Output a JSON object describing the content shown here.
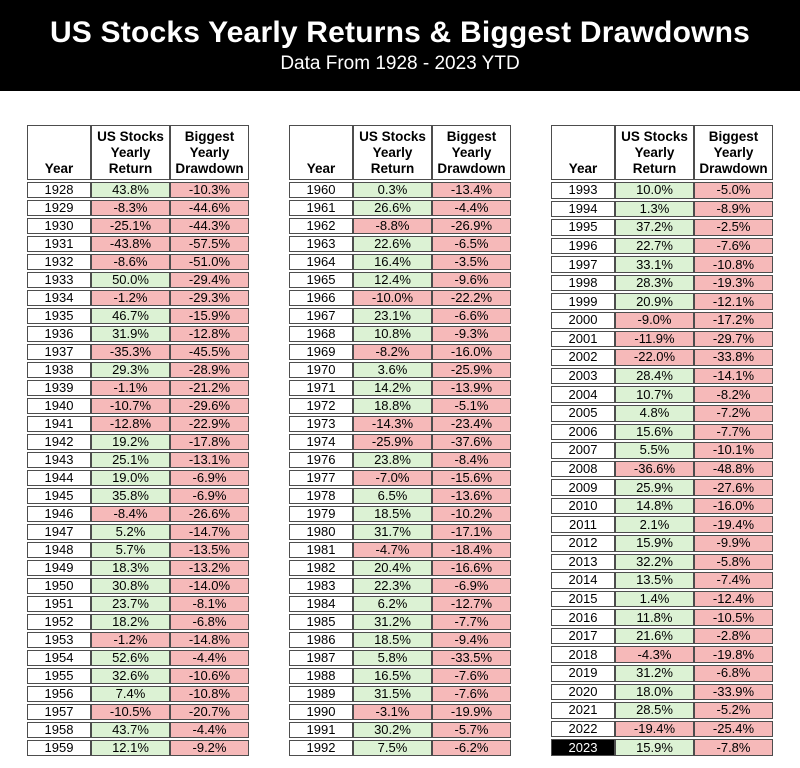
{
  "header": {
    "title": "US Stocks Yearly Returns & Biggest Drawdowns",
    "subtitle": "Data From 1928 - 2023 YTD"
  },
  "table_headers": {
    "year": "Year",
    "return": "US Stocks\nYearly\nReturn",
    "drawdown": "Biggest\nYearly\nDrawdown"
  },
  "colors": {
    "banner_bg": "#000000",
    "banner_text": "#ffffff",
    "positive_cell_bg": "#dcf2d4",
    "negative_cell_bg": "#f6b9b9",
    "highlight_year_bg": "#000000",
    "highlight_year_text": "#ffffff",
    "grid_border": "#4d4d4d"
  },
  "chart_data": {
    "type": "table",
    "title": "US Stocks Yearly Returns & Biggest Drawdowns",
    "subtitle": "Data From 1928 - 2023 YTD",
    "columns": [
      "Year",
      "US Stocks Yearly Return",
      "Biggest Yearly Drawdown"
    ],
    "highlighted_year": "2023",
    "color_rule": "return cells green when positive, pink when negative; drawdown cells always pink; 2023 year cell black with white text",
    "tables": [
      {
        "name": "1928-1959",
        "rows": [
          [
            "1928",
            "43.8%",
            "-10.3%"
          ],
          [
            "1929",
            "-8.3%",
            "-44.6%"
          ],
          [
            "1930",
            "-25.1%",
            "-44.3%"
          ],
          [
            "1931",
            "-43.8%",
            "-57.5%"
          ],
          [
            "1932",
            "-8.6%",
            "-51.0%"
          ],
          [
            "1933",
            "50.0%",
            "-29.4%"
          ],
          [
            "1934",
            "-1.2%",
            "-29.3%"
          ],
          [
            "1935",
            "46.7%",
            "-15.9%"
          ],
          [
            "1936",
            "31.9%",
            "-12.8%"
          ],
          [
            "1937",
            "-35.3%",
            "-45.5%"
          ],
          [
            "1938",
            "29.3%",
            "-28.9%"
          ],
          [
            "1939",
            "-1.1%",
            "-21.2%"
          ],
          [
            "1940",
            "-10.7%",
            "-29.6%"
          ],
          [
            "1941",
            "-12.8%",
            "-22.9%"
          ],
          [
            "1942",
            "19.2%",
            "-17.8%"
          ],
          [
            "1943",
            "25.1%",
            "-13.1%"
          ],
          [
            "1944",
            "19.0%",
            "-6.9%"
          ],
          [
            "1945",
            "35.8%",
            "-6.9%"
          ],
          [
            "1946",
            "-8.4%",
            "-26.6%"
          ],
          [
            "1947",
            "5.2%",
            "-14.7%"
          ],
          [
            "1948",
            "5.7%",
            "-13.5%"
          ],
          [
            "1949",
            "18.3%",
            "-13.2%"
          ],
          [
            "1950",
            "30.8%",
            "-14.0%"
          ],
          [
            "1951",
            "23.7%",
            "-8.1%"
          ],
          [
            "1952",
            "18.2%",
            "-6.8%"
          ],
          [
            "1953",
            "-1.2%",
            "-14.8%"
          ],
          [
            "1954",
            "52.6%",
            "-4.4%"
          ],
          [
            "1955",
            "32.6%",
            "-10.6%"
          ],
          [
            "1956",
            "7.4%",
            "-10.8%"
          ],
          [
            "1957",
            "-10.5%",
            "-20.7%"
          ],
          [
            "1958",
            "43.7%",
            "-4.4%"
          ],
          [
            "1959",
            "12.1%",
            "-9.2%"
          ]
        ]
      },
      {
        "name": "1960-1992",
        "rows": [
          [
            "1960",
            "0.3%",
            "-13.4%"
          ],
          [
            "1961",
            "26.6%",
            "-4.4%"
          ],
          [
            "1962",
            "-8.8%",
            "-26.9%"
          ],
          [
            "1963",
            "22.6%",
            "-6.5%"
          ],
          [
            "1964",
            "16.4%",
            "-3.5%"
          ],
          [
            "1965",
            "12.4%",
            "-9.6%"
          ],
          [
            "1966",
            "-10.0%",
            "-22.2%"
          ],
          [
            "1967",
            "23.1%",
            "-6.6%"
          ],
          [
            "1968",
            "10.8%",
            "-9.3%"
          ],
          [
            "1969",
            "-8.2%",
            "-16.0%"
          ],
          [
            "1970",
            "3.6%",
            "-25.9%"
          ],
          [
            "1971",
            "14.2%",
            "-13.9%"
          ],
          [
            "1972",
            "18.8%",
            "-5.1%"
          ],
          [
            "1973",
            "-14.3%",
            "-23.4%"
          ],
          [
            "1974",
            "-25.9%",
            "-37.6%"
          ],
          [
            "1976",
            "23.8%",
            "-8.4%"
          ],
          [
            "1977",
            "-7.0%",
            "-15.6%"
          ],
          [
            "1978",
            "6.5%",
            "-13.6%"
          ],
          [
            "1979",
            "18.5%",
            "-10.2%"
          ],
          [
            "1980",
            "31.7%",
            "-17.1%"
          ],
          [
            "1981",
            "-4.7%",
            "-18.4%"
          ],
          [
            "1982",
            "20.4%",
            "-16.6%"
          ],
          [
            "1983",
            "22.3%",
            "-6.9%"
          ],
          [
            "1984",
            "6.2%",
            "-12.7%"
          ],
          [
            "1985",
            "31.2%",
            "-7.7%"
          ],
          [
            "1986",
            "18.5%",
            "-9.4%"
          ],
          [
            "1987",
            "5.8%",
            "-33.5%"
          ],
          [
            "1988",
            "16.5%",
            "-7.6%"
          ],
          [
            "1989",
            "31.5%",
            "-7.6%"
          ],
          [
            "1990",
            "-3.1%",
            "-19.9%"
          ],
          [
            "1991",
            "30.2%",
            "-5.7%"
          ],
          [
            "1992",
            "7.5%",
            "-6.2%"
          ]
        ]
      },
      {
        "name": "1993-2023",
        "rows": [
          [
            "1993",
            "10.0%",
            "-5.0%"
          ],
          [
            "1994",
            "1.3%",
            "-8.9%"
          ],
          [
            "1995",
            "37.2%",
            "-2.5%"
          ],
          [
            "1996",
            "22.7%",
            "-7.6%"
          ],
          [
            "1997",
            "33.1%",
            "-10.8%"
          ],
          [
            "1998",
            "28.3%",
            "-19.3%"
          ],
          [
            "1999",
            "20.9%",
            "-12.1%"
          ],
          [
            "2000",
            "-9.0%",
            "-17.2%"
          ],
          [
            "2001",
            "-11.9%",
            "-29.7%"
          ],
          [
            "2002",
            "-22.0%",
            "-33.8%"
          ],
          [
            "2003",
            "28.4%",
            "-14.1%"
          ],
          [
            "2004",
            "10.7%",
            "-8.2%"
          ],
          [
            "2005",
            "4.8%",
            "-7.2%"
          ],
          [
            "2006",
            "15.6%",
            "-7.7%"
          ],
          [
            "2007",
            "5.5%",
            "-10.1%"
          ],
          [
            "2008",
            "-36.6%",
            "-48.8%"
          ],
          [
            "2009",
            "25.9%",
            "-27.6%"
          ],
          [
            "2010",
            "14.8%",
            "-16.0%"
          ],
          [
            "2011",
            "2.1%",
            "-19.4%"
          ],
          [
            "2012",
            "15.9%",
            "-9.9%"
          ],
          [
            "2013",
            "32.2%",
            "-5.8%"
          ],
          [
            "2014",
            "13.5%",
            "-7.4%"
          ],
          [
            "2015",
            "1.4%",
            "-12.4%"
          ],
          [
            "2016",
            "11.8%",
            "-10.5%"
          ],
          [
            "2017",
            "21.6%",
            "-2.8%"
          ],
          [
            "2018",
            "-4.3%",
            "-19.8%"
          ],
          [
            "2019",
            "31.2%",
            "-6.8%"
          ],
          [
            "2020",
            "18.0%",
            "-33.9%"
          ],
          [
            "2021",
            "28.5%",
            "-5.2%"
          ],
          [
            "2022",
            "-19.4%",
            "-25.4%"
          ],
          [
            "2023",
            "15.9%",
            "-7.8%"
          ]
        ]
      }
    ]
  }
}
